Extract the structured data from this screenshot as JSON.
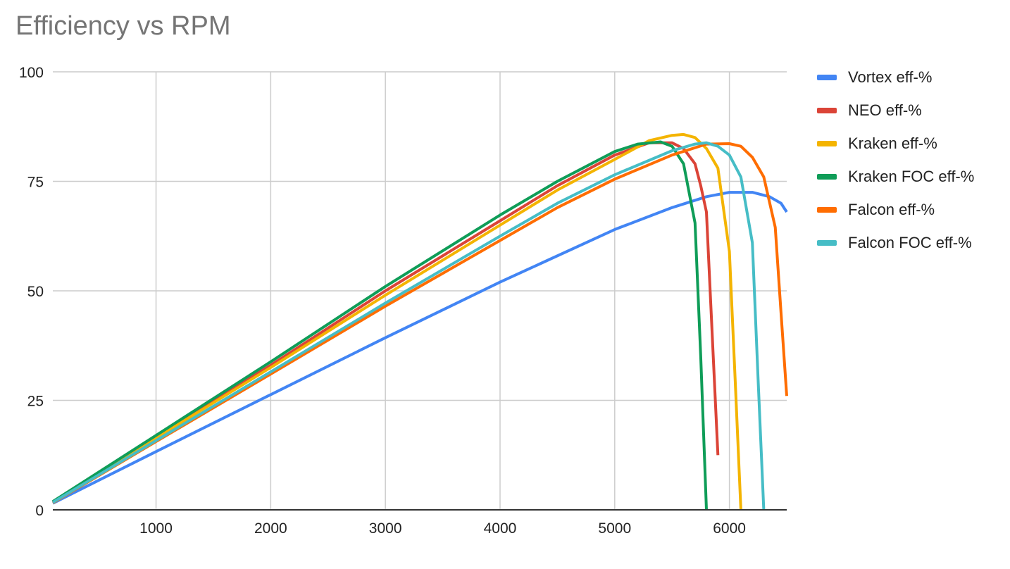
{
  "chart_data": {
    "type": "line",
    "title": "Efficiency vs RPM",
    "xlabel": "",
    "ylabel": "",
    "xlim": [
      100,
      6500
    ],
    "ylim": [
      0,
      100
    ],
    "xticks": [
      1000,
      2000,
      3000,
      4000,
      5000,
      6000
    ],
    "yticks": [
      0,
      25,
      50,
      75,
      100
    ],
    "grid": true,
    "legend_position": "right",
    "series": [
      {
        "name": "Vortex eff-%",
        "color": "#4285F4",
        "points": [
          [
            100,
            1.5
          ],
          [
            1000,
            13.3
          ],
          [
            2000,
            26.3
          ],
          [
            3000,
            39.3
          ],
          [
            4000,
            52
          ],
          [
            5000,
            64
          ],
          [
            5500,
            69
          ],
          [
            5800,
            71.5
          ],
          [
            6000,
            72.5
          ],
          [
            6200,
            72.5
          ],
          [
            6350,
            71.5
          ],
          [
            6450,
            70
          ],
          [
            6500,
            68
          ]
        ]
      },
      {
        "name": "NEO eff-%",
        "color": "#DB4437",
        "points": [
          [
            100,
            1.8
          ],
          [
            1000,
            16.7
          ],
          [
            2000,
            33
          ],
          [
            3000,
            50
          ],
          [
            4000,
            66
          ],
          [
            4500,
            74
          ],
          [
            5000,
            81
          ],
          [
            5300,
            83.8
          ],
          [
            5500,
            83.8
          ],
          [
            5600,
            82.5
          ],
          [
            5700,
            79
          ],
          [
            5750,
            74
          ],
          [
            5800,
            68
          ],
          [
            5850,
            40
          ],
          [
            5900,
            12.5
          ]
        ]
      },
      {
        "name": "Kraken eff-%",
        "color": "#F4B400",
        "points": [
          [
            100,
            1.7
          ],
          [
            1000,
            16.4
          ],
          [
            2000,
            32.5
          ],
          [
            3000,
            49
          ],
          [
            4000,
            65
          ],
          [
            4500,
            73
          ],
          [
            5000,
            80
          ],
          [
            5300,
            84.3
          ],
          [
            5500,
            85.5
          ],
          [
            5600,
            85.7
          ],
          [
            5700,
            85
          ],
          [
            5800,
            82.5
          ],
          [
            5900,
            78
          ],
          [
            6000,
            59
          ],
          [
            6050,
            30
          ],
          [
            6100,
            0
          ]
        ]
      },
      {
        "name": "Kraken FOC eff-%",
        "color": "#0F9D58",
        "points": [
          [
            100,
            1.9
          ],
          [
            1000,
            17
          ],
          [
            2000,
            33.8
          ],
          [
            3000,
            51
          ],
          [
            4000,
            67.3
          ],
          [
            4500,
            75
          ],
          [
            5000,
            81.8
          ],
          [
            5200,
            83.5
          ],
          [
            5400,
            84
          ],
          [
            5500,
            83
          ],
          [
            5600,
            79
          ],
          [
            5700,
            65.5
          ],
          [
            5750,
            35
          ],
          [
            5800,
            0
          ]
        ]
      },
      {
        "name": "Falcon eff-%",
        "color": "#FF6D01",
        "points": [
          [
            100,
            1.6
          ],
          [
            1000,
            15.6
          ],
          [
            2000,
            31
          ],
          [
            3000,
            46.5
          ],
          [
            4000,
            61.5
          ],
          [
            4500,
            69
          ],
          [
            5000,
            75.5
          ],
          [
            5500,
            81
          ],
          [
            5800,
            83.5
          ],
          [
            6000,
            83.6
          ],
          [
            6100,
            83
          ],
          [
            6200,
            80.5
          ],
          [
            6300,
            76
          ],
          [
            6400,
            64.5
          ],
          [
            6450,
            45
          ],
          [
            6500,
            26
          ]
        ]
      },
      {
        "name": "Falcon FOC eff-%",
        "color": "#46BDC6",
        "points": [
          [
            100,
            1.7
          ],
          [
            1000,
            15.8
          ],
          [
            2000,
            31.5
          ],
          [
            3000,
            47.2
          ],
          [
            4000,
            62.5
          ],
          [
            4500,
            70
          ],
          [
            5000,
            76.5
          ],
          [
            5500,
            82
          ],
          [
            5700,
            83.5
          ],
          [
            5800,
            83.8
          ],
          [
            5900,
            83
          ],
          [
            6000,
            81
          ],
          [
            6100,
            76
          ],
          [
            6200,
            61
          ],
          [
            6250,
            30
          ],
          [
            6300,
            0
          ]
        ]
      }
    ]
  }
}
